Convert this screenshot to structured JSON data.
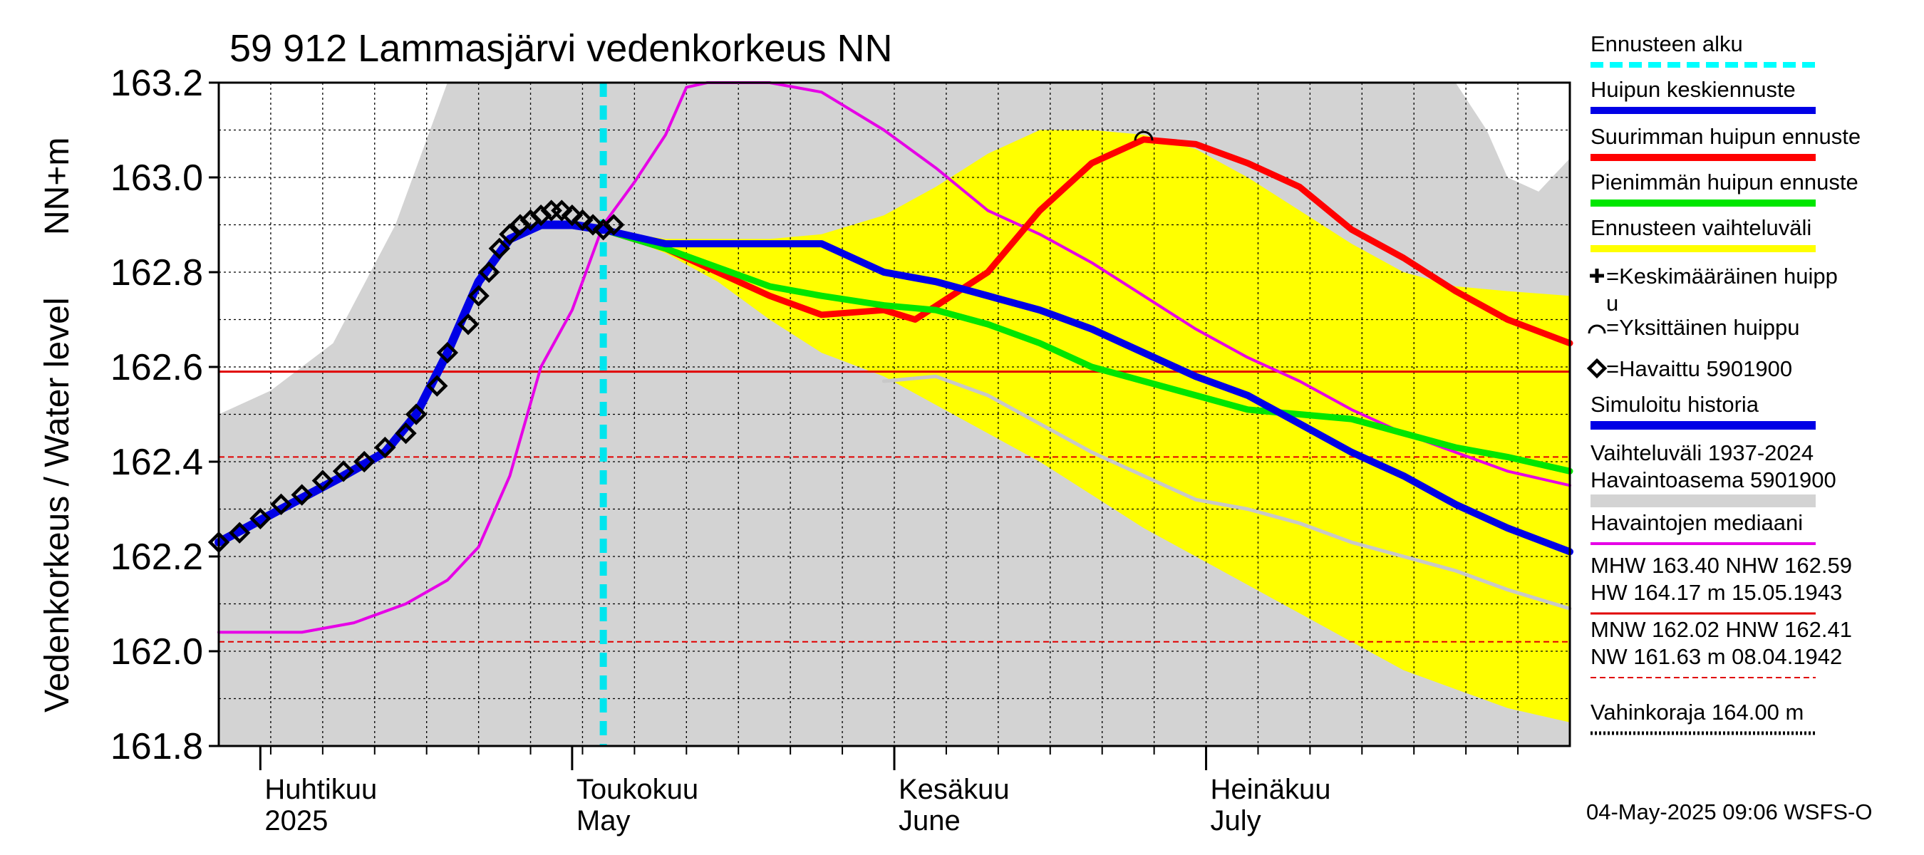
{
  "chart_data": {
    "type": "line",
    "title": "59 912 Lammasjärvi vedenkorkeus NN",
    "ylabel": "Vedenkorkeus / Water level",
    "yunit": "NN+m",
    "ylim": [
      161.8,
      163.2
    ],
    "yticks": [
      "161.8",
      "162.0",
      "162.2",
      "162.4",
      "162.6",
      "162.8",
      "163.0",
      "163.2"
    ],
    "xlim": [
      "2025-03-28",
      "2025-08-05"
    ],
    "grid": true,
    "legend_position": "right",
    "month_labels": [
      {
        "date": "2025-04-01",
        "fi": "Huhtikuu",
        "en": "2025"
      },
      {
        "date": "2025-05-01",
        "fi": "Toukokuu",
        "en": "May"
      },
      {
        "date": "2025-06-01",
        "fi": "Kesäkuu",
        "en": "June"
      },
      {
        "date": "2025-07-01",
        "fi": "Heinäkuu",
        "en": "July"
      }
    ],
    "forecast_start": "2025-05-04",
    "reference_lines": [
      {
        "label": "NHW",
        "value": 162.59,
        "style": "solid",
        "color": "#e00000"
      },
      {
        "label": "HNW",
        "value": 162.41,
        "style": "dashed",
        "color": "#e00000"
      },
      {
        "label": "MNW",
        "value": 162.02,
        "style": "dashed",
        "color": "#e00000"
      }
    ],
    "history_band": {
      "name": "Vaihteluväli 1937-2024 Havaintoasema 5901900",
      "color": "#d3d3d3",
      "x": [
        "2025-03-28",
        "2025-04-02",
        "2025-04-08",
        "2025-04-14",
        "2025-04-19",
        "2025-04-24",
        "2025-04-28",
        "2025-05-01",
        "2025-05-05",
        "2025-05-10",
        "2025-05-15",
        "2025-05-20",
        "2025-05-25",
        "2025-05-31",
        "2025-06-05",
        "2025-06-10",
        "2025-06-15",
        "2025-06-20",
        "2025-06-25",
        "2025-06-30",
        "2025-07-05",
        "2025-07-10",
        "2025-07-15",
        "2025-07-20",
        "2025-07-25",
        "2025-07-28",
        "2025-07-30",
        "2025-08-02",
        "2025-08-05"
      ],
      "upper": [
        162.5,
        162.55,
        162.65,
        162.9,
        163.2,
        163.2,
        163.2,
        163.2,
        163.2,
        163.2,
        163.2,
        163.2,
        163.2,
        163.2,
        163.2,
        163.2,
        163.2,
        163.2,
        163.2,
        163.2,
        163.2,
        163.2,
        163.2,
        163.2,
        163.2,
        163.1,
        163.0,
        162.97,
        163.04
      ],
      "lower": [
        161.8,
        161.8,
        161.8,
        161.8,
        161.8,
        161.8,
        161.8,
        161.8,
        161.8,
        161.8,
        161.8,
        161.8,
        161.8,
        161.8,
        161.8,
        161.8,
        161.8,
        161.8,
        161.8,
        161.8,
        161.8,
        161.8,
        161.8,
        161.8,
        161.8,
        161.8,
        161.8,
        161.8,
        161.8
      ]
    },
    "forecast_band": {
      "name": "Ennusteen vaihteluväli",
      "color": "#ffff00",
      "x": [
        "2025-05-04",
        "2025-05-10",
        "2025-05-15",
        "2025-05-20",
        "2025-05-25",
        "2025-05-31",
        "2025-06-05",
        "2025-06-10",
        "2025-06-15",
        "2025-06-20",
        "2025-06-25",
        "2025-06-30",
        "2025-07-05",
        "2025-07-10",
        "2025-07-15",
        "2025-07-20",
        "2025-07-25",
        "2025-07-30",
        "2025-08-05"
      ],
      "upper": [
        162.89,
        162.87,
        162.87,
        162.87,
        162.88,
        162.92,
        162.98,
        163.05,
        163.1,
        163.1,
        163.09,
        163.06,
        163.0,
        162.93,
        162.86,
        162.8,
        162.77,
        162.76,
        162.75
      ],
      "lower": [
        162.89,
        162.84,
        162.78,
        162.7,
        162.63,
        162.58,
        162.52,
        162.46,
        162.4,
        162.33,
        162.26,
        162.2,
        162.14,
        162.08,
        162.02,
        161.96,
        161.92,
        161.88,
        161.85
      ]
    },
    "series": [
      {
        "name": "Havaittu 5901900",
        "color": "#000000",
        "marker": "diamond",
        "x": [
          "2025-03-28",
          "2025-03-30",
          "2025-04-01",
          "2025-04-03",
          "2025-04-05",
          "2025-04-07",
          "2025-04-09",
          "2025-04-11",
          "2025-04-13",
          "2025-04-15",
          "2025-04-16",
          "2025-04-18",
          "2025-04-19",
          "2025-04-21",
          "2025-04-22",
          "2025-04-23",
          "2025-04-24",
          "2025-04-25",
          "2025-04-26",
          "2025-04-27",
          "2025-04-28",
          "2025-04-29",
          "2025-04-30",
          "2025-05-01",
          "2025-05-02",
          "2025-05-03",
          "2025-05-04",
          "2025-05-05"
        ],
        "y": [
          162.23,
          162.25,
          162.28,
          162.31,
          162.33,
          162.36,
          162.38,
          162.4,
          162.43,
          162.46,
          162.5,
          162.56,
          162.63,
          162.69,
          162.75,
          162.8,
          162.85,
          162.88,
          162.9,
          162.91,
          162.92,
          162.93,
          162.93,
          162.92,
          162.91,
          162.9,
          162.89,
          162.9
        ]
      },
      {
        "name": "Simuloitu historia",
        "color": "#0000e6",
        "x": [
          "2025-03-28",
          "2025-04-03",
          "2025-04-09",
          "2025-04-13",
          "2025-04-16",
          "2025-04-19",
          "2025-04-22",
          "2025-04-25",
          "2025-04-28",
          "2025-05-01",
          "2025-05-04"
        ],
        "y": [
          162.23,
          162.3,
          162.37,
          162.42,
          162.5,
          162.63,
          162.78,
          162.87,
          162.9,
          162.9,
          162.89
        ]
      },
      {
        "name": "Huipun keskiennuste",
        "color": "#0000e6",
        "x": [
          "2025-05-04",
          "2025-05-10",
          "2025-05-15",
          "2025-05-20",
          "2025-05-25",
          "2025-05-31",
          "2025-06-05",
          "2025-06-10",
          "2025-06-15",
          "2025-06-20",
          "2025-06-25",
          "2025-06-30",
          "2025-07-05",
          "2025-07-10",
          "2025-07-15",
          "2025-07-20",
          "2025-07-25",
          "2025-07-30",
          "2025-08-05"
        ],
        "y": [
          162.89,
          162.86,
          162.86,
          162.86,
          162.86,
          162.8,
          162.78,
          162.75,
          162.72,
          162.68,
          162.63,
          162.58,
          162.54,
          162.48,
          162.42,
          162.37,
          162.31,
          162.26,
          162.21
        ]
      },
      {
        "name": "Suurimman huipun ennuste",
        "color": "#ff0000",
        "x": [
          "2025-05-04",
          "2025-05-10",
          "2025-05-15",
          "2025-05-20",
          "2025-05-25",
          "2025-05-31",
          "2025-06-03",
          "2025-06-10",
          "2025-06-15",
          "2025-06-20",
          "2025-06-25",
          "2025-06-30",
          "2025-07-05",
          "2025-07-10",
          "2025-07-15",
          "2025-07-20",
          "2025-07-25",
          "2025-07-30",
          "2025-08-05"
        ],
        "y": [
          162.89,
          162.85,
          162.8,
          162.75,
          162.71,
          162.72,
          162.7,
          162.8,
          162.93,
          163.03,
          163.08,
          163.07,
          163.03,
          162.98,
          162.89,
          162.83,
          162.76,
          162.7,
          162.65
        ]
      },
      {
        "name": "Pienimmän huipun ennuste",
        "color": "#00e600",
        "x": [
          "2025-05-04",
          "2025-05-10",
          "2025-05-15",
          "2025-05-20",
          "2025-05-25",
          "2025-05-31",
          "2025-06-05",
          "2025-06-10",
          "2025-06-15",
          "2025-06-20",
          "2025-06-25",
          "2025-06-30",
          "2025-07-05",
          "2025-07-10",
          "2025-07-15",
          "2025-07-20",
          "2025-07-25",
          "2025-07-30",
          "2025-08-05"
        ],
        "y": [
          162.89,
          162.85,
          162.81,
          162.77,
          162.75,
          162.73,
          162.72,
          162.69,
          162.65,
          162.6,
          162.57,
          162.54,
          162.51,
          162.5,
          162.49,
          162.46,
          162.43,
          162.41,
          162.38
        ]
      },
      {
        "name": "Havaintojen mediaani",
        "color": "#e600e6",
        "x": [
          "2025-03-28",
          "2025-04-05",
          "2025-04-10",
          "2025-04-15",
          "2025-04-19",
          "2025-04-22",
          "2025-04-25",
          "2025-04-28",
          "2025-05-01",
          "2025-05-04",
          "2025-05-07",
          "2025-05-10",
          "2025-05-12",
          "2025-05-14",
          "2025-05-20",
          "2025-05-25",
          "2025-05-31",
          "2025-06-05",
          "2025-06-10",
          "2025-06-15",
          "2025-06-20",
          "2025-06-25",
          "2025-06-30",
          "2025-07-05",
          "2025-07-10",
          "2025-07-15",
          "2025-07-20",
          "2025-07-25",
          "2025-07-30",
          "2025-08-05"
        ],
        "y": [
          162.04,
          162.04,
          162.06,
          162.1,
          162.15,
          162.22,
          162.37,
          162.6,
          162.72,
          162.9,
          162.99,
          163.09,
          163.19,
          163.2,
          163.2,
          163.18,
          163.1,
          163.02,
          162.93,
          162.88,
          162.82,
          162.75,
          162.68,
          162.62,
          162.57,
          162.51,
          162.46,
          162.42,
          162.38,
          162.35
        ]
      },
      {
        "name": "",
        "color": "#c8c8c8",
        "x": [
          "2025-05-31",
          "2025-06-05",
          "2025-06-10",
          "2025-06-15",
          "2025-06-20",
          "2025-06-25",
          "2025-06-30",
          "2025-07-05",
          "2025-07-10",
          "2025-07-15",
          "2025-07-20",
          "2025-07-25",
          "2025-07-30",
          "2025-08-05"
        ],
        "y": [
          162.57,
          162.58,
          162.54,
          162.48,
          162.42,
          162.37,
          162.32,
          162.3,
          162.27,
          162.23,
          162.2,
          162.17,
          162.13,
          162.09
        ]
      }
    ],
    "peak_marker": {
      "name": "Yksittäinen huippu",
      "date": "2025-06-25",
      "value": 163.09
    }
  },
  "legend": [
    {
      "label": "Ennusteen alku",
      "color": "#00ffff",
      "style": "dashed",
      "width": 8
    },
    {
      "label": "Huipun keskiennuste",
      "color": "#0000e6",
      "style": "solid",
      "width": 10
    },
    {
      "label": "Suurimman huipun ennuste",
      "color": "#ff0000",
      "style": "solid",
      "width": 10
    },
    {
      "label": "Pienimmän huipun ennuste",
      "color": "#00e600",
      "style": "solid",
      "width": 10
    },
    {
      "label": "Ennusteen vaihteluväli",
      "color": "#ffff00",
      "style": "solid",
      "width": 10
    },
    {
      "label": "=Keskimääräinen huipp",
      "label2": "u",
      "color": "#000000",
      "style": "plus"
    },
    {
      "label": "=Yksittäinen huippu",
      "color": "#000000",
      "style": "arc"
    },
    {
      "label": "=Havaittu 5901900",
      "color": "#000000",
      "style": "diamond"
    },
    {
      "label": "Simuloitu historia",
      "color": "#0000e6",
      "style": "solid",
      "width": 12
    },
    {
      "label": "Vaihteluväli 1937-2024",
      "label2": " Havaintoasema 5901900",
      "color": "#d3d3d3",
      "style": "solid",
      "width": 18
    },
    {
      "label": "Havaintojen mediaani",
      "color": "#e600e6",
      "style": "solid",
      "width": 4
    },
    {
      "label": "MHW 163.40 NHW 162.59",
      "label2": "HW 164.17 m 15.05.1943",
      "color": "#e00000",
      "style": "solid",
      "width": 3
    },
    {
      "label": "MNW 162.02 HNW 162.41",
      "label2": "NW 161.63 m 08.04.1942",
      "color": "#e00000",
      "style": "dashed",
      "width": 2
    },
    {
      "label": "Vahinkoraja 164.00 m",
      "color": "#000000",
      "style": "dotted",
      "width": 5
    }
  ],
  "footer": {
    "timestamp": "04-May-2025 09:06 WSFS-O"
  }
}
